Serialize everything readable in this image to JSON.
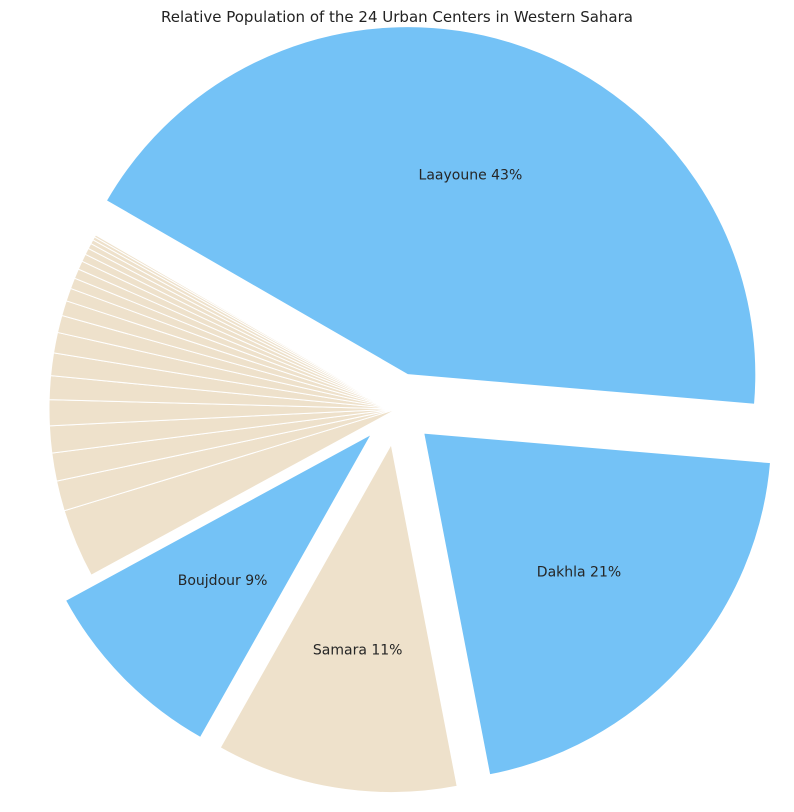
{
  "chart_data": {
    "type": "pie",
    "title": "Relative Population of the 24 Urban Centers in Western Sahara",
    "start_angle_deg": 150,
    "direction": "clockwise",
    "colors": {
      "blue": "#74c2f6",
      "beige": "#eee1cb",
      "edge": "#ffffff"
    },
    "slices": [
      {
        "label": "Laayoune 43%",
        "value": 43.0,
        "color": "blue",
        "explode": true
      },
      {
        "label": "Dakhla 21%",
        "value": 20.6,
        "color": "blue",
        "explode": true
      },
      {
        "label": "Samara 11%",
        "value": 11.2,
        "color": "beige",
        "explode": true
      },
      {
        "label": "Boujdour 9%",
        "value": 8.9,
        "color": "blue",
        "explode": true
      },
      {
        "label": "",
        "value": 3.2,
        "color": "beige"
      },
      {
        "label": "",
        "value": 1.4,
        "color": "beige"
      },
      {
        "label": "",
        "value": 1.3,
        "color": "beige"
      },
      {
        "label": "",
        "value": 1.25,
        "color": "beige"
      },
      {
        "label": "",
        "value": 1.2,
        "color": "beige"
      },
      {
        "label": "",
        "value": 1.1,
        "color": "beige"
      },
      {
        "label": "",
        "value": 1.05,
        "color": "beige"
      },
      {
        "label": "",
        "value": 0.95,
        "color": "beige"
      },
      {
        "label": "",
        "value": 0.8,
        "color": "beige"
      },
      {
        "label": "",
        "value": 0.7,
        "color": "beige"
      },
      {
        "label": "",
        "value": 0.6,
        "color": "beige"
      },
      {
        "label": "",
        "value": 0.5,
        "color": "beige"
      },
      {
        "label": "",
        "value": 0.45,
        "color": "beige"
      },
      {
        "label": "",
        "value": 0.4,
        "color": "beige"
      },
      {
        "label": "",
        "value": 0.35,
        "color": "beige"
      },
      {
        "label": "",
        "value": 0.3,
        "color": "beige"
      },
      {
        "label": "",
        "value": 0.25,
        "color": "beige"
      },
      {
        "label": "",
        "value": 0.2,
        "color": "beige"
      },
      {
        "label": "",
        "value": 0.15,
        "color": "beige"
      },
      {
        "label": "",
        "value": 0.1,
        "color": "beige"
      }
    ]
  }
}
